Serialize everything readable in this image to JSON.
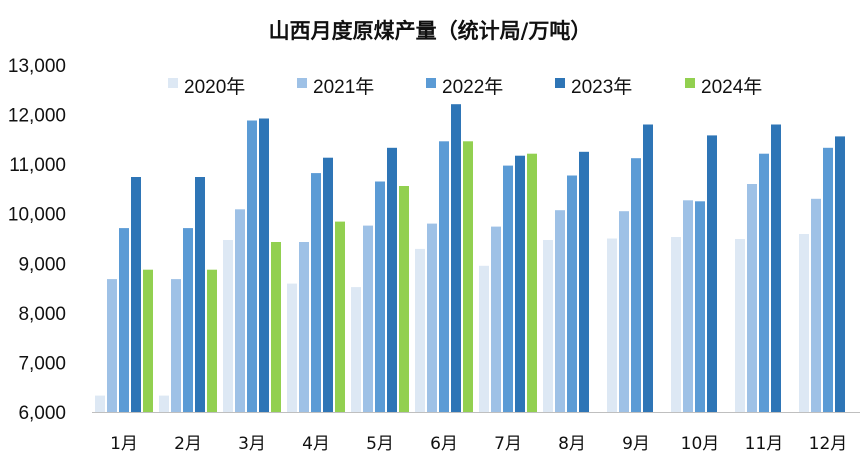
{
  "chart_data": {
    "type": "bar",
    "title": "山西月度原煤产量（统计局/万吨）",
    "xlabel": "",
    "ylabel": "",
    "ylim": [
      6000,
      13000
    ],
    "yticks": [
      6000,
      7000,
      8000,
      9000,
      10000,
      11000,
      12000,
      13000
    ],
    "ytick_labels": [
      "6,000",
      "7,000",
      "8,000",
      "9,000",
      "10,000",
      "11,000",
      "12,000",
      "13,000"
    ],
    "grid": false,
    "legend_position": "top",
    "categories": [
      "1月",
      "2月",
      "3月",
      "4月",
      "5月",
      "6月",
      "7月",
      "8月",
      "9月",
      "10月",
      "11月",
      "12月"
    ],
    "series": [
      {
        "name": "2020年",
        "color": "#dde8f4",
        "values": [
          6330,
          6330,
          9470,
          8590,
          8520,
          9290,
          8950,
          9470,
          9500,
          9530,
          9490,
          9590
        ]
      },
      {
        "name": "2021年",
        "color": "#9ec1e6",
        "values": [
          8680,
          8680,
          10090,
          9430,
          9760,
          9800,
          9740,
          10070,
          10050,
          10270,
          10600,
          10300
        ]
      },
      {
        "name": "2022年",
        "color": "#5b9bd5",
        "values": [
          9710,
          9710,
          11880,
          10820,
          10650,
          11460,
          10970,
          10770,
          11120,
          10250,
          11210,
          11330
        ]
      },
      {
        "name": "2023年",
        "color": "#2e75b6",
        "values": [
          10740,
          10740,
          11920,
          11130,
          11330,
          12210,
          11170,
          11250,
          11800,
          11580,
          11800,
          11560
        ]
      },
      {
        "name": "2024年",
        "color": "#92d050",
        "values": [
          8870,
          8870,
          9430,
          9840,
          10560,
          11460,
          11210,
          null,
          null,
          null,
          null,
          null
        ]
      }
    ]
  }
}
